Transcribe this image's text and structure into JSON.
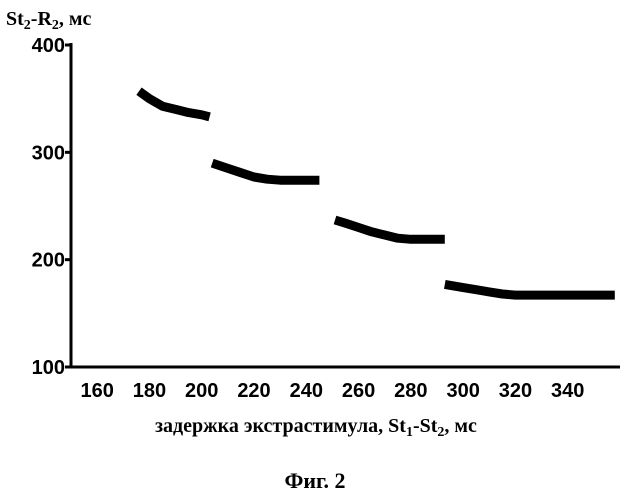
{
  "chart_data": {
    "type": "line",
    "ylabel_parts": {
      "main1": "St",
      "sub1": "2",
      "mid": "-R",
      "sub2": "2",
      "tail": ", мс"
    },
    "xlabel_parts": {
      "main1": "задержка экстрастимула, St",
      "sub1": "1",
      "mid": "-St",
      "sub2": "2",
      "tail": ", мс"
    },
    "caption": "Фиг. 2",
    "xlim": [
      150,
      360
    ],
    "ylim": [
      100,
      400
    ],
    "xticks": [
      160,
      180,
      200,
      220,
      240,
      260,
      280,
      300,
      320,
      340
    ],
    "yticks": [
      100,
      200,
      300,
      400
    ],
    "series": [
      {
        "x": [
          176,
          180,
          185,
          190,
          195,
          200,
          203
        ],
        "y": [
          357,
          350,
          343,
          340,
          337,
          335,
          333
        ]
      },
      {
        "x": [
          204,
          210,
          215,
          220,
          225,
          230,
          235,
          240,
          245
        ],
        "y": [
          290,
          285,
          281,
          277,
          275,
          274,
          274,
          274,
          274
        ]
      },
      {
        "x": [
          251,
          255,
          260,
          265,
          270,
          275,
          280,
          285,
          290,
          293
        ],
        "y": [
          237,
          234,
          230,
          226,
          223,
          220,
          219,
          219,
          219,
          219
        ]
      },
      {
        "x": [
          293,
          300,
          305,
          310,
          315,
          320,
          330,
          340,
          350,
          358
        ],
        "y": [
          177,
          174,
          172,
          170,
          168,
          167,
          167,
          167,
          167,
          167
        ]
      }
    ],
    "line_color": "#000000"
  }
}
